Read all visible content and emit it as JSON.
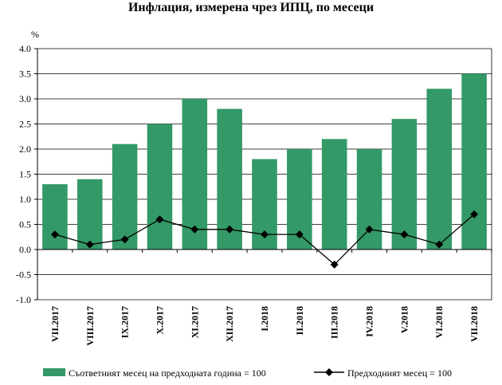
{
  "chart_data": {
    "type": "bar",
    "title": "Инфлация, измерена чрез ИПЦ, по месеци",
    "ylabel": "%",
    "ylim": [
      -1.0,
      4.0
    ],
    "yticks": [
      "4.0",
      "3.5",
      "3.0",
      "2.5",
      "2.0",
      "1.5",
      "1.0",
      "0.5",
      "0.0",
      "-0.5",
      "-1.0"
    ],
    "ytick_values": [
      4.0,
      3.5,
      3.0,
      2.5,
      2.0,
      1.5,
      1.0,
      0.5,
      0.0,
      -0.5,
      -1.0
    ],
    "categories": [
      "VII.2017",
      "VIII.2017",
      "IX.2017",
      "X.2017",
      "XI.2017",
      "XII.2017",
      "I.2018",
      "II.2018",
      "III.2018",
      "IV.2018",
      "V.2018",
      "VI.2018",
      "VII.2018"
    ],
    "grid": true,
    "legend_position": "bottom",
    "series": [
      {
        "name": "Съответният месец на предходната година = 100",
        "type": "bar",
        "color": "#339966",
        "values": [
          1.3,
          1.4,
          2.1,
          2.5,
          3.0,
          2.8,
          1.8,
          2.0,
          2.2,
          2.0,
          2.6,
          3.2,
          3.5
        ]
      },
      {
        "name": "Предходният месец = 100",
        "type": "line",
        "color": "#000000",
        "marker": "diamond",
        "values": [
          0.3,
          0.1,
          0.2,
          0.6,
          0.4,
          0.4,
          0.3,
          0.3,
          -0.3,
          0.4,
          0.3,
          0.1,
          0.7
        ]
      }
    ]
  }
}
